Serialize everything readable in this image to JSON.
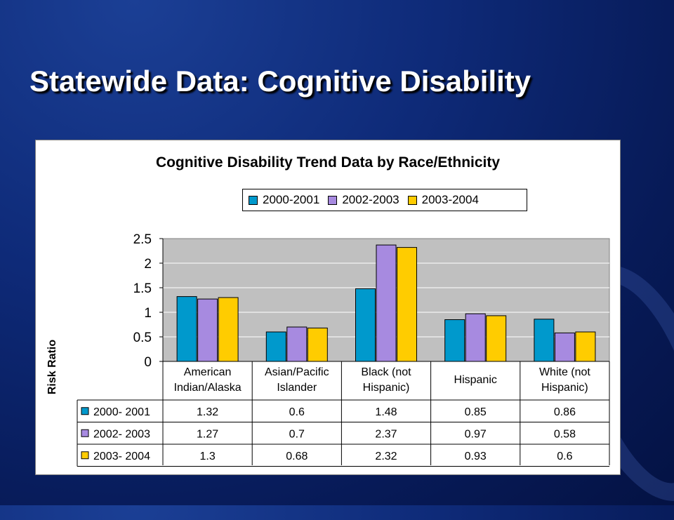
{
  "slide": {
    "title": "Statewide Data:  Cognitive Disability"
  },
  "chart_data": {
    "type": "bar",
    "title": "Cognitive Disability Trend Data by Race/Ethnicity",
    "xlabel": "",
    "ylabel": "Risk Ratio",
    "ylim": [
      0,
      2.5
    ],
    "yticks": [
      "0",
      "0.5",
      "1",
      "1.5",
      "2",
      "2.5"
    ],
    "grid": true,
    "legend_position": "top",
    "categories": [
      [
        "American",
        "Indian/Alaska"
      ],
      [
        "Asian/Pacific",
        "Islander"
      ],
      [
        "Black (not",
        "Hispanic)"
      ],
      [
        "Hispanic"
      ],
      [
        "White (not",
        "Hispanic)"
      ]
    ],
    "legend_labels": [
      "2000-2001",
      "2002-2003",
      "2003-2004"
    ],
    "series": [
      {
        "name": "2000- 2001",
        "color": "#0099cc",
        "values": [
          1.32,
          0.6,
          1.48,
          0.85,
          0.86
        ],
        "labels": [
          "1.32",
          "0.6",
          "1.48",
          "0.85",
          "0.86"
        ]
      },
      {
        "name": "2002- 2003",
        "color": "#a78ae0",
        "values": [
          1.27,
          0.7,
          2.37,
          0.97,
          0.58
        ],
        "labels": [
          "1.27",
          "0.7",
          "2.37",
          "0.97",
          "0.58"
        ]
      },
      {
        "name": "2003- 2004",
        "color": "#ffcc00",
        "values": [
          1.3,
          0.68,
          2.32,
          0.93,
          0.6
        ],
        "labels": [
          "1.3",
          "0.68",
          "2.32",
          "0.93",
          "0.6"
        ]
      }
    ],
    "plot_background": "#c0c0c0"
  }
}
